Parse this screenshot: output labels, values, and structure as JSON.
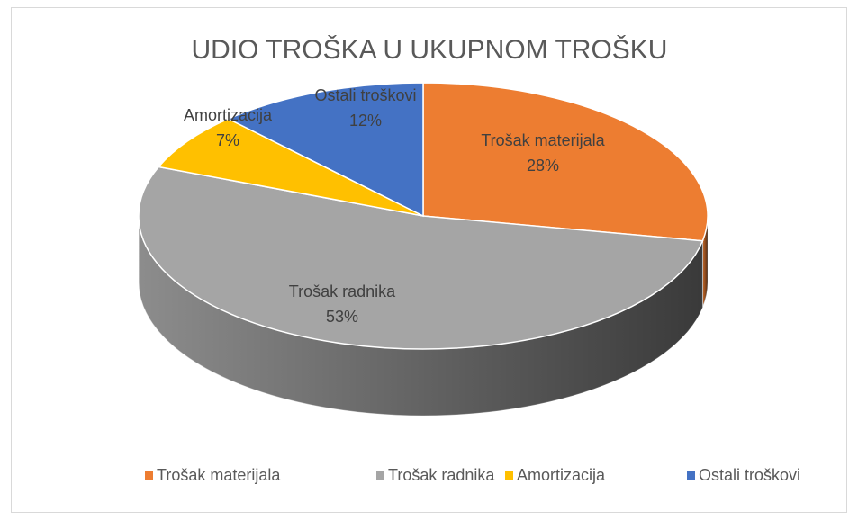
{
  "chart_data": {
    "type": "pie",
    "title": "UDIO TROŠKA U UKUPNOM TROŠKU",
    "categories": [
      "Trošak materijala",
      "Trošak radnika",
      "Amortizacija",
      "Ostali troškovi"
    ],
    "values": [
      28,
      53,
      7,
      12
    ],
    "value_labels": [
      "28%",
      "53%",
      "7%",
      "12%"
    ],
    "colors": [
      "#ED7D31",
      "#A5A5A5",
      "#FFC000",
      "#4472C4"
    ],
    "legend": "bottom"
  }
}
